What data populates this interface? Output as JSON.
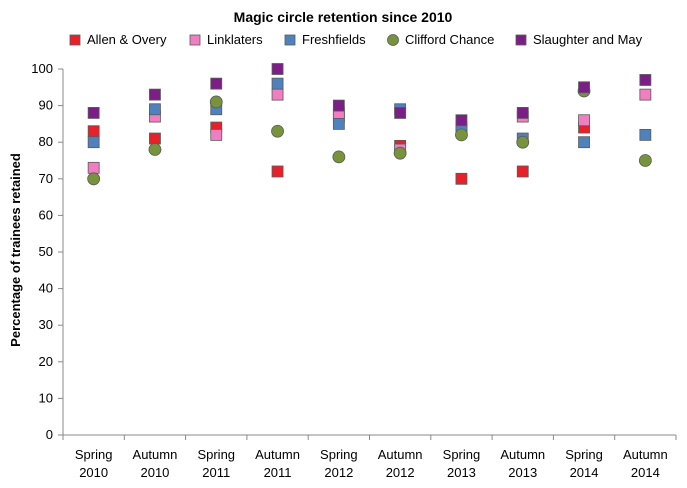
{
  "chart_data": {
    "type": "scatter",
    "title": "Magic circle retention since 2010",
    "xlabel": "",
    "ylabel": "Percentage of trainees retained",
    "ylim": [
      0,
      100
    ],
    "yticks": [
      0,
      10,
      20,
      30,
      40,
      50,
      60,
      70,
      80,
      90,
      100
    ],
    "grid": false,
    "legend_position": "top",
    "categories": [
      [
        "Spring",
        "2010"
      ],
      [
        "Autumn",
        "2010"
      ],
      [
        "Spring",
        "2011"
      ],
      [
        "Autumn",
        "2011"
      ],
      [
        "Spring",
        "2012"
      ],
      [
        "Autumn",
        "2012"
      ],
      [
        "Spring",
        "2013"
      ],
      [
        "Autumn",
        "2013"
      ],
      [
        "Spring",
        "2014"
      ],
      [
        "Autumn",
        "2014"
      ]
    ],
    "series": [
      {
        "name": "Allen & Overy",
        "color": "#e8202a",
        "marker": "square",
        "values": [
          83,
          81,
          84,
          72,
          88,
          79,
          70,
          72,
          84,
          null
        ]
      },
      {
        "name": "Linklaters",
        "color": "#f07ec0",
        "marker": "square",
        "values": [
          73,
          87,
          82,
          93,
          87,
          78,
          83,
          87,
          86,
          93
        ]
      },
      {
        "name": "Freshfields",
        "color": "#4f81bd",
        "marker": "square",
        "values": [
          80,
          89,
          89,
          96,
          85,
          89,
          84,
          81,
          80,
          82
        ]
      },
      {
        "name": "Clifford Chance",
        "color": "#77933c",
        "marker": "circle",
        "values": [
          70,
          78,
          91,
          83,
          76,
          77,
          82,
          80,
          94,
          75
        ]
      },
      {
        "name": "Slaughter and May",
        "color": "#7b1f86",
        "marker": "square",
        "values": [
          88,
          93,
          96,
          100,
          90,
          88,
          86,
          88,
          95,
          97
        ]
      }
    ]
  }
}
